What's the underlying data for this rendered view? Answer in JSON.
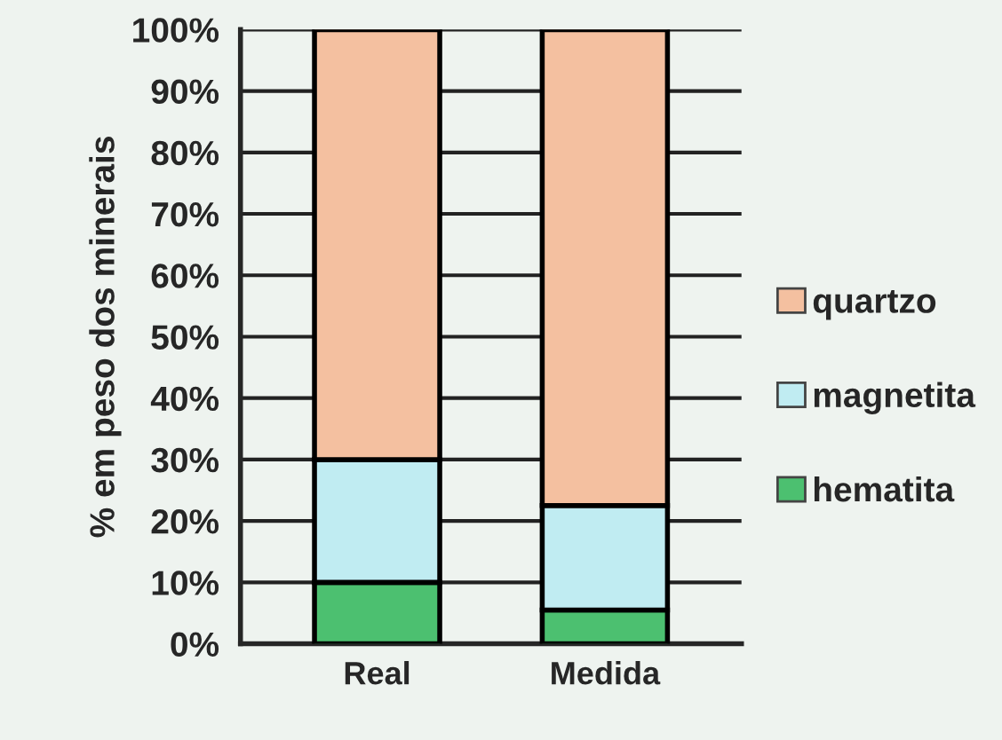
{
  "chart_data": {
    "type": "bar",
    "stacked": true,
    "ylabel": "% em peso dos minerais",
    "categories": [
      "Real",
      "Medida"
    ],
    "series": [
      {
        "name": "hematita",
        "color": "#4cc070",
        "values": [
          10,
          5.5
        ]
      },
      {
        "name": "magnetita",
        "color": "#c0ecf2",
        "values": [
          20,
          17
        ]
      },
      {
        "name": "quartzo",
        "color": "#f4c0a0",
        "values": [
          70,
          77.5
        ]
      }
    ],
    "ylim": [
      0,
      100
    ],
    "yticks": [
      {
        "value": 0,
        "label": "0%"
      },
      {
        "value": 10,
        "label": "10%"
      },
      {
        "value": 20,
        "label": "20%"
      },
      {
        "value": 30,
        "label": "30%"
      },
      {
        "value": 40,
        "label": "40%"
      },
      {
        "value": 50,
        "label": "50%"
      },
      {
        "value": 60,
        "label": "60%"
      },
      {
        "value": 70,
        "label": "70%"
      },
      {
        "value": 80,
        "label": "80%"
      },
      {
        "value": 90,
        "label": "90%"
      },
      {
        "value": 100,
        "label": "100%"
      }
    ],
    "grid": "y",
    "legend": "right"
  }
}
